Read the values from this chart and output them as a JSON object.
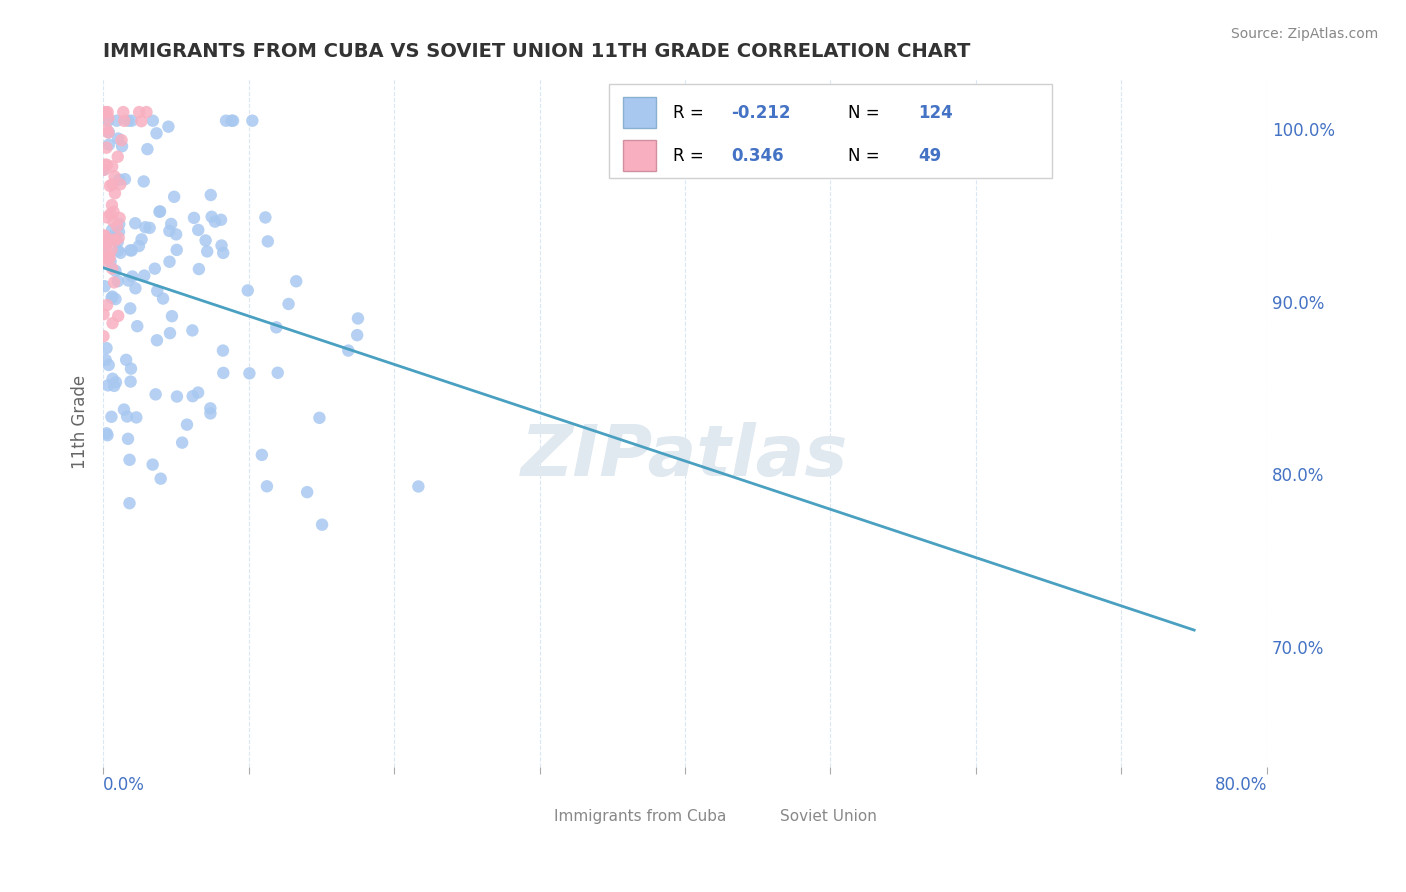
{
  "title": "IMMIGRANTS FROM CUBA VS SOVIET UNION 11TH GRADE CORRELATION CHART",
  "source": "Source: ZipAtlas.com",
  "ylabel": "11th Grade",
  "ylabel_right_ticks": [
    "100.0%",
    "90.0%",
    "80.0%",
    "70.0%"
  ],
  "ylabel_right_values": [
    1.0,
    0.9,
    0.8,
    0.7
  ],
  "xmin": 0.0,
  "xmax": 0.8,
  "ymin": 0.63,
  "ymax": 1.03,
  "R_cuba": -0.212,
  "N_cuba": 124,
  "R_soviet": 0.346,
  "N_soviet": 49,
  "cuba_color": "#a8c8f0",
  "soviet_color": "#f8b0c0",
  "trendline_color": "#4aa0c0",
  "text_color": "#4472c4",
  "grid_color": "#d0e0f0",
  "background_color": "#ffffff",
  "watermark_text": "ZIPatlas",
  "watermark_color": "#e0e8f0"
}
